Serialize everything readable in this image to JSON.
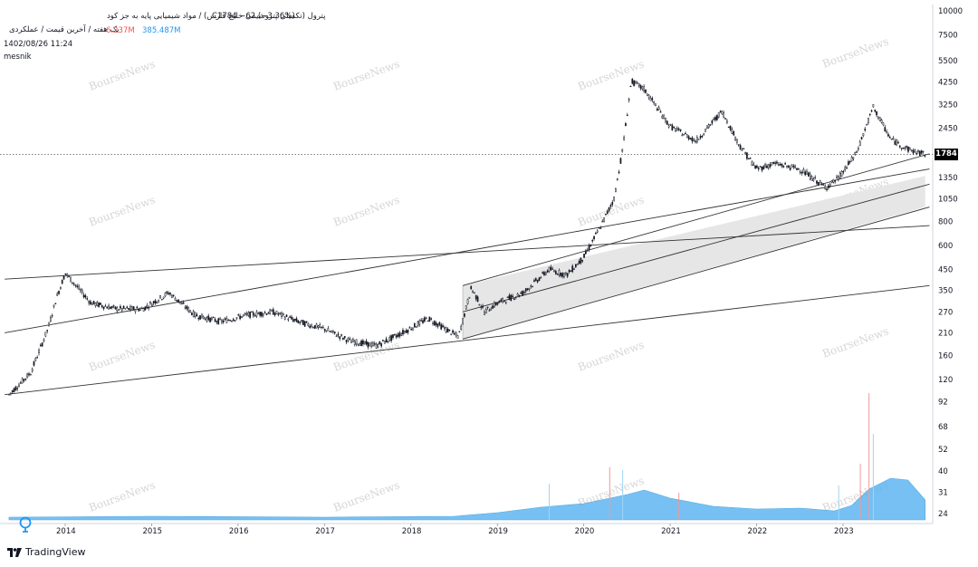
{
  "header": {
    "title": "پترول (تکمیلی پتروشیمی خلیج فارس) / مواد شیمیایی پایه به جز کود",
    "quote": "C1784  −62 (−3.36%)",
    "subtitle": "یک هفته / آخرین قیمت / عملکردی",
    "vol_value_1": "6.237M",
    "vol_value_2": "385.487M",
    "timestamp": "1402/08/26 11:24",
    "author": "mesnik"
  },
  "last_price_label": "1784",
  "watermark": "BourseNews",
  "footer": {
    "brand": "TradingView"
  },
  "colors": {
    "candle": "#131722",
    "volume_area": "#5fb6f2",
    "volume_up": "#9fd4f5",
    "volume_down": "#ef9a9a",
    "channel_fill": "#e6e6e6",
    "line": "#333333"
  },
  "chart_data": {
    "type": "candlestick",
    "scale": "log",
    "price_axis_ticks": [
      10000,
      7500,
      5500,
      4250,
      3250,
      2450,
      1784,
      1350,
      1050,
      800,
      600,
      450,
      350,
      270,
      210,
      160,
      120,
      92,
      68,
      52,
      40,
      31,
      24
    ],
    "time_axis_ticks": [
      "2014",
      "2015",
      "2016",
      "2017",
      "2018",
      "2019",
      "2020",
      "2021",
      "2022",
      "2023"
    ],
    "last_price": 1784,
    "ylim": [
      24,
      10000
    ],
    "series": [
      {
        "name": "price",
        "x": [
          2013.35,
          2013.6,
          2013.8,
          2013.9,
          2014.0,
          2014.3,
          2014.6,
          2014.9,
          2015.2,
          2015.5,
          2015.8,
          2016.1,
          2016.4,
          2016.7,
          2017.0,
          2017.3,
          2017.6,
          2017.9,
          2018.2,
          2018.4,
          2018.55,
          2018.7,
          2018.85,
          2019.0,
          2019.3,
          2019.6,
          2019.8,
          2020.0,
          2020.2,
          2020.35,
          2020.45,
          2020.55,
          2020.7,
          2021.0,
          2021.3,
          2021.6,
          2021.8,
          2022.0,
          2022.2,
          2022.5,
          2022.8,
          2022.95,
          2023.15,
          2023.35,
          2023.55,
          2023.75,
          2023.95
        ],
        "y": [
          100,
          130,
          220,
          320,
          430,
          300,
          280,
          280,
          340,
          260,
          240,
          260,
          270,
          240,
          220,
          190,
          180,
          210,
          250,
          220,
          200,
          360,
          270,
          300,
          340,
          450,
          420,
          520,
          760,
          1050,
          1900,
          4300,
          3900,
          2500,
          2100,
          3000,
          2000,
          1500,
          1600,
          1500,
          1200,
          1350,
          1800,
          3150,
          2150,
          1900,
          1784
        ]
      }
    ]
  }
}
